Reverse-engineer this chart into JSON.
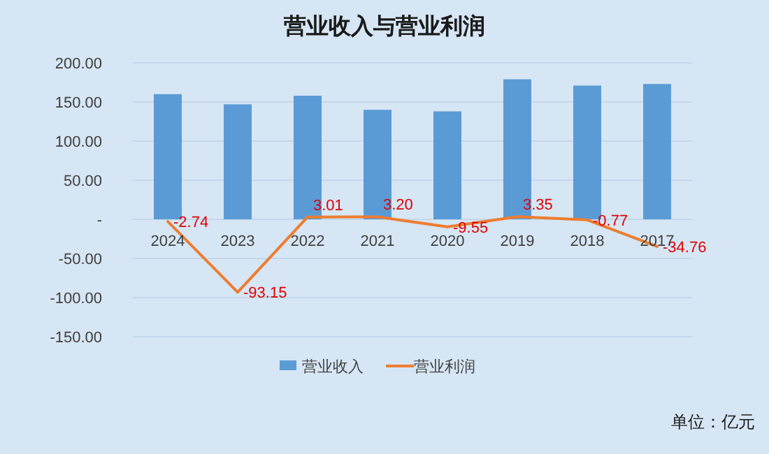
{
  "chart_data": {
    "type": "bar",
    "title": "营业收入与营业利润",
    "categories": [
      "2024",
      "2023",
      "2022",
      "2021",
      "2020",
      "2019",
      "2018",
      "2017"
    ],
    "series": [
      {
        "name": "营业收入",
        "color": "#5b9bd5",
        "values": [
          160,
          147,
          158,
          140,
          138,
          179,
          171,
          173
        ]
      },
      {
        "name": "营业利润",
        "type": "line",
        "color": "#ed7d31",
        "values": [
          -2.74,
          -93.15,
          3.01,
          3.2,
          -9.55,
          3.35,
          -0.77,
          -34.76
        ],
        "value_labels": [
          "-2.74",
          "-93.15",
          "3.01",
          "3.20",
          "-9.55",
          "3.35",
          "-0.77",
          "-34.76"
        ]
      }
    ],
    "ylim": [
      -150,
      200
    ],
    "yticks": [
      {
        "value": -150,
        "label": "-150.00"
      },
      {
        "value": -100,
        "label": "-100.00"
      },
      {
        "value": -50,
        "label": "-50.00"
      },
      {
        "value": 0,
        "label": "-"
      },
      {
        "value": 50,
        "label": "50.00"
      },
      {
        "value": 100,
        "label": "100.00"
      },
      {
        "value": 150,
        "label": "150.00"
      },
      {
        "value": 200,
        "label": "200.00"
      }
    ],
    "grid": "y",
    "legend": "bottom",
    "marker": "none",
    "annotations": [
      "单位：亿元"
    ]
  }
}
